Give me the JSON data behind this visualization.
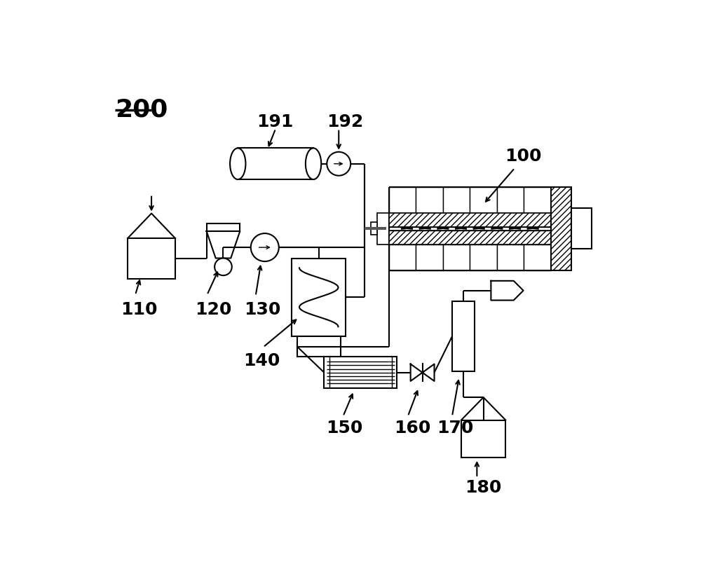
{
  "bg_color": "#ffffff",
  "lc": "#000000",
  "lw": 1.5
}
